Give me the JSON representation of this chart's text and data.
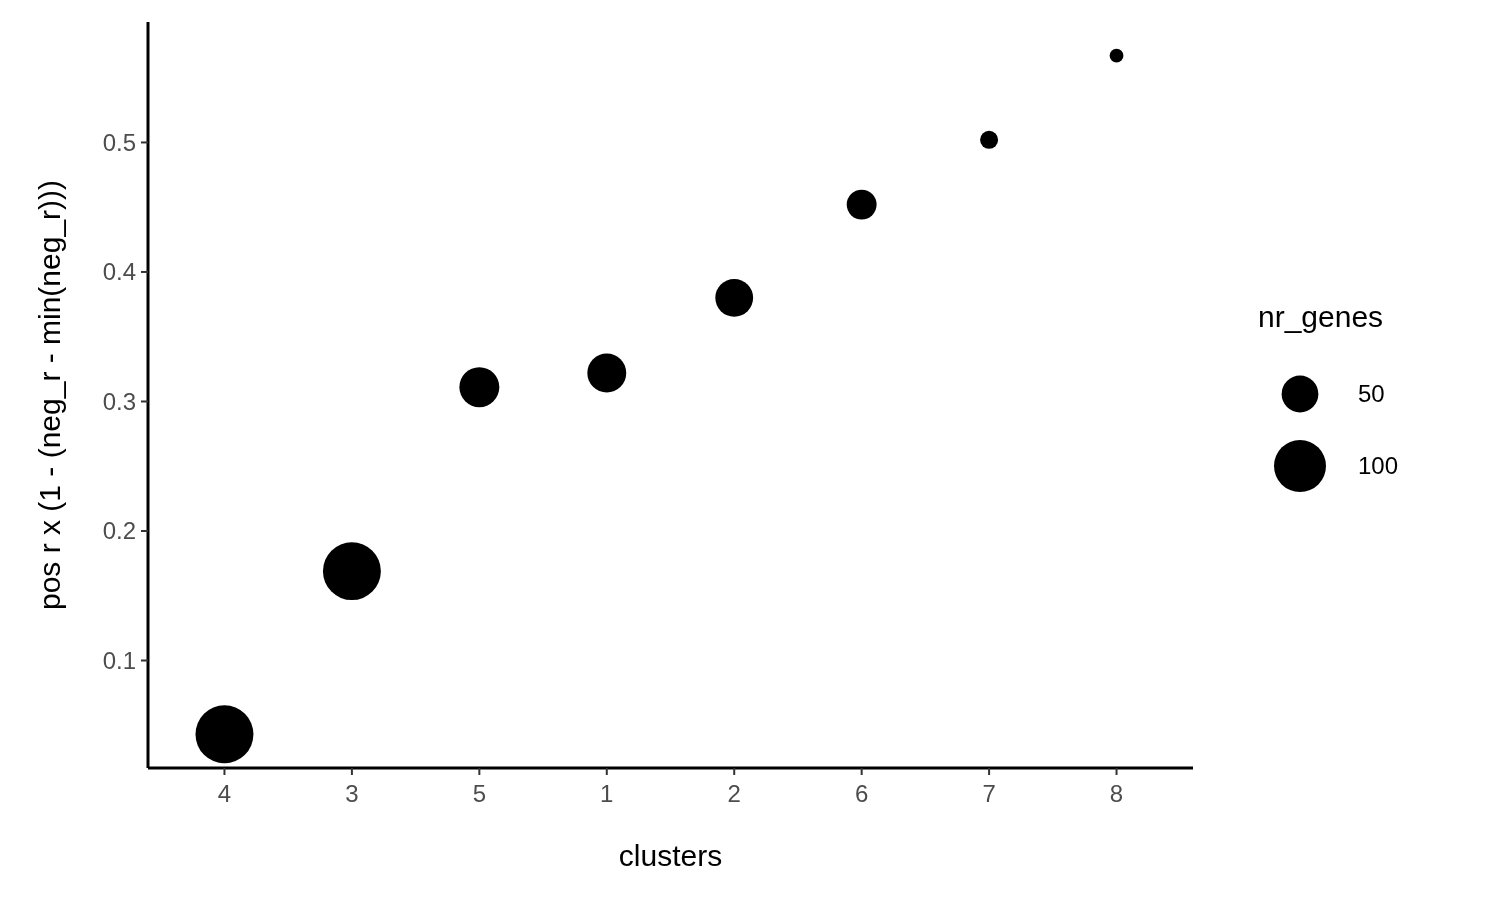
{
  "chart_data": {
    "type": "bubble",
    "xlabel": "clusters",
    "ylabel": "pos r x (1 - (neg_r - min(neg_r)))",
    "legend_title": "nr_genes",
    "categories": [
      "4",
      "3",
      "5",
      "1",
      "2",
      "6",
      "7",
      "8"
    ],
    "series": [
      {
        "color": "#000000",
        "values": [
          0.043,
          0.169,
          0.311,
          0.322,
          0.38,
          0.452,
          0.502,
          0.567
        ],
        "sizes": [
          124,
          124,
          59,
          56,
          53,
          33,
          12,
          7
        ]
      }
    ],
    "size_legend": [
      50,
      100
    ],
    "ylim": [
      0.017,
      0.593
    ],
    "yticks": [
      0.1,
      0.2,
      0.3,
      0.4,
      0.5
    ],
    "grid": false
  }
}
